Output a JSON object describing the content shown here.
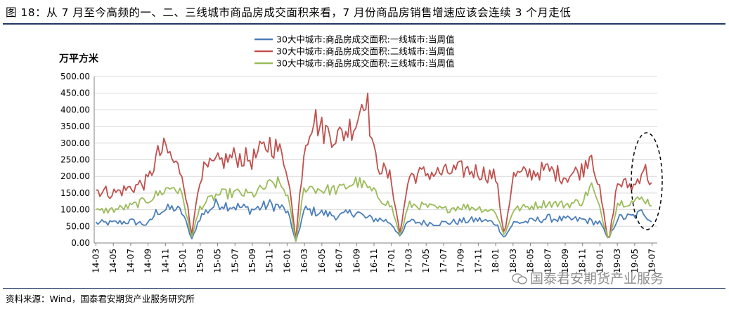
{
  "figure_title": "图 18：从 7 月至今高频的一、二、三线城市商品房成交面积来看，7 月份商品房销售增速应该会连续 3 个月走低",
  "source_note": "资料来源：Wind，国泰君安期货产业服务研究所",
  "watermark": "国泰君安期货产业服务",
  "colors": {
    "tier1": "#4a7ebb",
    "tier2": "#c0504d",
    "tier3": "#9bbb59",
    "grid": "#d9d9d9",
    "axis": "#808080",
    "rule": "#1f3864"
  },
  "chart_data": {
    "type": "line",
    "ylabel": "万平方米",
    "ylim": [
      0,
      500
    ],
    "yticks": [
      "0.00",
      "50.00",
      "100.00",
      "150.00",
      "200.00",
      "250.00",
      "300.00",
      "350.00",
      "400.00",
      "450.00",
      "500.00"
    ],
    "x_tick_labels": [
      "14-03",
      "14-05",
      "14-07",
      "14-09",
      "14-11",
      "15-01",
      "15-03",
      "15-05",
      "15-07",
      "15-09",
      "15-11",
      "16-01",
      "16-03",
      "16-05",
      "16-07",
      "16-09",
      "16-11",
      "17-01",
      "17-03",
      "17-05",
      "17-07",
      "17-09",
      "17-11",
      "18-01",
      "18-03",
      "18-05",
      "18-07",
      "18-09",
      "18-11",
      "19-01",
      "19-03",
      "19-05",
      "19-07"
    ],
    "grid": "horizontal",
    "legend_position": "top-center",
    "annotation": "dashed ellipse highlighting 2019-05 to 2019-07",
    "series": [
      {
        "name": "30大中城市:商品房成交面积:一线城市:当周值",
        "color": "#4a7ebb",
        "keypoints": [
          [
            "14-03",
            60
          ],
          [
            "14-05",
            60
          ],
          [
            "14-07",
            65
          ],
          [
            "14-09",
            55
          ],
          [
            "14-10",
            95
          ],
          [
            "14-12",
            105
          ],
          [
            "15-01",
            90
          ],
          [
            "15-02",
            10
          ],
          [
            "15-03",
            80
          ],
          [
            "15-05",
            120
          ],
          [
            "15-07",
            110
          ],
          [
            "15-09",
            100
          ],
          [
            "15-11",
            115
          ],
          [
            "15-12",
            110
          ],
          [
            "16-01",
            95
          ],
          [
            "16-02",
            5
          ],
          [
            "16-03",
            100
          ],
          [
            "16-05",
            90
          ],
          [
            "16-07",
            80
          ],
          [
            "16-09",
            95
          ],
          [
            "16-10",
            75
          ],
          [
            "16-12",
            70
          ],
          [
            "17-01",
            60
          ],
          [
            "17-02",
            20
          ],
          [
            "17-03",
            65
          ],
          [
            "17-05",
            60
          ],
          [
            "17-07",
            60
          ],
          [
            "17-09",
            65
          ],
          [
            "17-11",
            70
          ],
          [
            "18-01",
            60
          ],
          [
            "18-02",
            15
          ],
          [
            "18-03",
            60
          ],
          [
            "18-05",
            65
          ],
          [
            "18-07",
            75
          ],
          [
            "18-09",
            70
          ],
          [
            "18-11",
            70
          ],
          [
            "19-01",
            60
          ],
          [
            "19-02",
            10
          ],
          [
            "19-03",
            75
          ],
          [
            "19-05",
            80
          ],
          [
            "19-06",
            95
          ],
          [
            "19-07",
            65
          ]
        ]
      },
      {
        "name": "30大中城市:商品房成交面积:二线城市:当周值",
        "color": "#c0504d",
        "keypoints": [
          [
            "14-03",
            160
          ],
          [
            "14-05",
            150
          ],
          [
            "14-07",
            165
          ],
          [
            "14-09",
            185
          ],
          [
            "14-10",
            260
          ],
          [
            "14-11",
            285
          ],
          [
            "14-12",
            240
          ],
          [
            "15-01",
            210
          ],
          [
            "15-02",
            20
          ],
          [
            "15-03",
            210
          ],
          [
            "15-05",
            240
          ],
          [
            "15-07",
            260
          ],
          [
            "15-09",
            250
          ],
          [
            "15-11",
            300
          ],
          [
            "15-12",
            280
          ],
          [
            "16-01",
            230
          ],
          [
            "16-02",
            10
          ],
          [
            "16-03",
            300
          ],
          [
            "16-04",
            380
          ],
          [
            "16-05",
            340
          ],
          [
            "16-07",
            320
          ],
          [
            "16-09",
            365
          ],
          [
            "16-10",
            465
          ],
          [
            "16-11",
            260
          ],
          [
            "16-12",
            220
          ],
          [
            "17-01",
            190
          ],
          [
            "17-02",
            25
          ],
          [
            "17-03",
            200
          ],
          [
            "17-05",
            210
          ],
          [
            "17-07",
            210
          ],
          [
            "17-09",
            220
          ],
          [
            "17-11",
            215
          ],
          [
            "18-01",
            200
          ],
          [
            "18-02",
            20
          ],
          [
            "18-03",
            200
          ],
          [
            "18-05",
            210
          ],
          [
            "18-07",
            220
          ],
          [
            "18-09",
            200
          ],
          [
            "18-11",
            220
          ],
          [
            "18-12",
            280
          ],
          [
            "19-01",
            150
          ],
          [
            "19-02",
            0
          ],
          [
            "19-03",
            180
          ],
          [
            "19-05",
            170
          ],
          [
            "19-06",
            230
          ],
          [
            "19-07",
            175
          ]
        ]
      },
      {
        "name": "30大中城市:商品房成交面积:三线城市:当周值",
        "color": "#9bbb59",
        "keypoints": [
          [
            "14-03",
            95
          ],
          [
            "14-05",
            100
          ],
          [
            "14-07",
            110
          ],
          [
            "14-09",
            130
          ],
          [
            "14-11",
            160
          ],
          [
            "14-12",
            170
          ],
          [
            "15-01",
            140
          ],
          [
            "15-02",
            15
          ],
          [
            "15-03",
            110
          ],
          [
            "15-05",
            145
          ],
          [
            "15-07",
            150
          ],
          [
            "15-09",
            145
          ],
          [
            "15-11",
            175
          ],
          [
            "15-12",
            180
          ],
          [
            "16-01",
            150
          ],
          [
            "16-02",
            5
          ],
          [
            "16-03",
            170
          ],
          [
            "16-05",
            160
          ],
          [
            "16-07",
            160
          ],
          [
            "16-09",
            185
          ],
          [
            "16-10",
            170
          ],
          [
            "16-12",
            130
          ],
          [
            "17-01",
            110
          ],
          [
            "17-02",
            20
          ],
          [
            "17-03",
            115
          ],
          [
            "17-05",
            110
          ],
          [
            "17-07",
            100
          ],
          [
            "17-09",
            110
          ],
          [
            "17-11",
            105
          ],
          [
            "18-01",
            95
          ],
          [
            "18-02",
            20
          ],
          [
            "18-03",
            100
          ],
          [
            "18-05",
            110
          ],
          [
            "18-07",
            120
          ],
          [
            "18-09",
            115
          ],
          [
            "18-11",
            125
          ],
          [
            "18-12",
            175
          ],
          [
            "19-01",
            100
          ],
          [
            "19-02",
            5
          ],
          [
            "19-03",
            120
          ],
          [
            "19-05",
            125
          ],
          [
            "19-06",
            135
          ],
          [
            "19-07",
            115
          ]
        ]
      }
    ]
  }
}
